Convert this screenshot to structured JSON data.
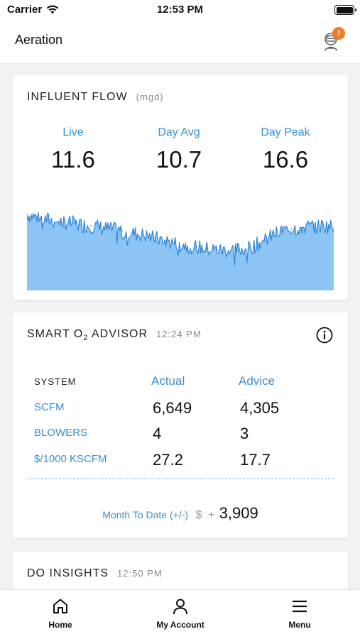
{
  "status_bar": {
    "carrier": "Carrier",
    "time": "12:53 PM"
  },
  "header": {
    "title": "Aeration",
    "badge": "!",
    "badge_color": "#f07d24"
  },
  "influent_flow": {
    "title": "INFLUENT FLOW",
    "unit": "(mgd)",
    "stats": [
      {
        "label": "Live",
        "value": "11.6"
      },
      {
        "label": "Day Avg",
        "value": "10.7"
      },
      {
        "label": "Day Peak",
        "value": "16.6"
      }
    ]
  },
  "chart_data": {
    "type": "area",
    "title": "",
    "xlabel": "",
    "ylabel": "",
    "grid": false,
    "legend": "none",
    "fill_color": "#8cc4f5",
    "line_color": "#2f86d6",
    "ylim": [
      0,
      20
    ],
    "series": [
      {
        "values": [
          16.4,
          15.8,
          15.2,
          15.0,
          14.6,
          14.2,
          14.0,
          13.6,
          13.2,
          12.8,
          12.4,
          12.0,
          11.4,
          10.8,
          10.2,
          9.8,
          9.4,
          9.0,
          8.8,
          8.6,
          8.8,
          9.2,
          10.2,
          11.6,
          12.8,
          13.4,
          13.6,
          13.8,
          14.0,
          13.8
        ]
      }
    ]
  },
  "advisor": {
    "title_prefix": "SMART O",
    "title_sub": "2",
    "title_suffix": " ADVISOR",
    "time": "12:24 PM",
    "info_icon": "info-circle-icon",
    "headers": {
      "system": "SYSTEM",
      "actual": "Actual",
      "advice": "Advice"
    },
    "rows": [
      {
        "label": "SCFM",
        "actual": "6,649",
        "advice": "4,305"
      },
      {
        "label": "BLOWERS",
        "actual": "4",
        "advice": "3"
      },
      {
        "label": "$/1000 KSCFM",
        "actual": "27.2",
        "advice": "17.7"
      }
    ],
    "mtd_label": "Month To Date (+/-)",
    "mtd_currency": "$",
    "mtd_sign": "+",
    "mtd_value": "3,909"
  },
  "insights": {
    "title": "DO INSIGHTS",
    "time": "12:50 PM"
  },
  "nav": {
    "home": "Home",
    "account": "My Account",
    "menu": "Menu"
  },
  "colors": {
    "accent": "#3a8fd0",
    "background": "#f2f2f2"
  }
}
